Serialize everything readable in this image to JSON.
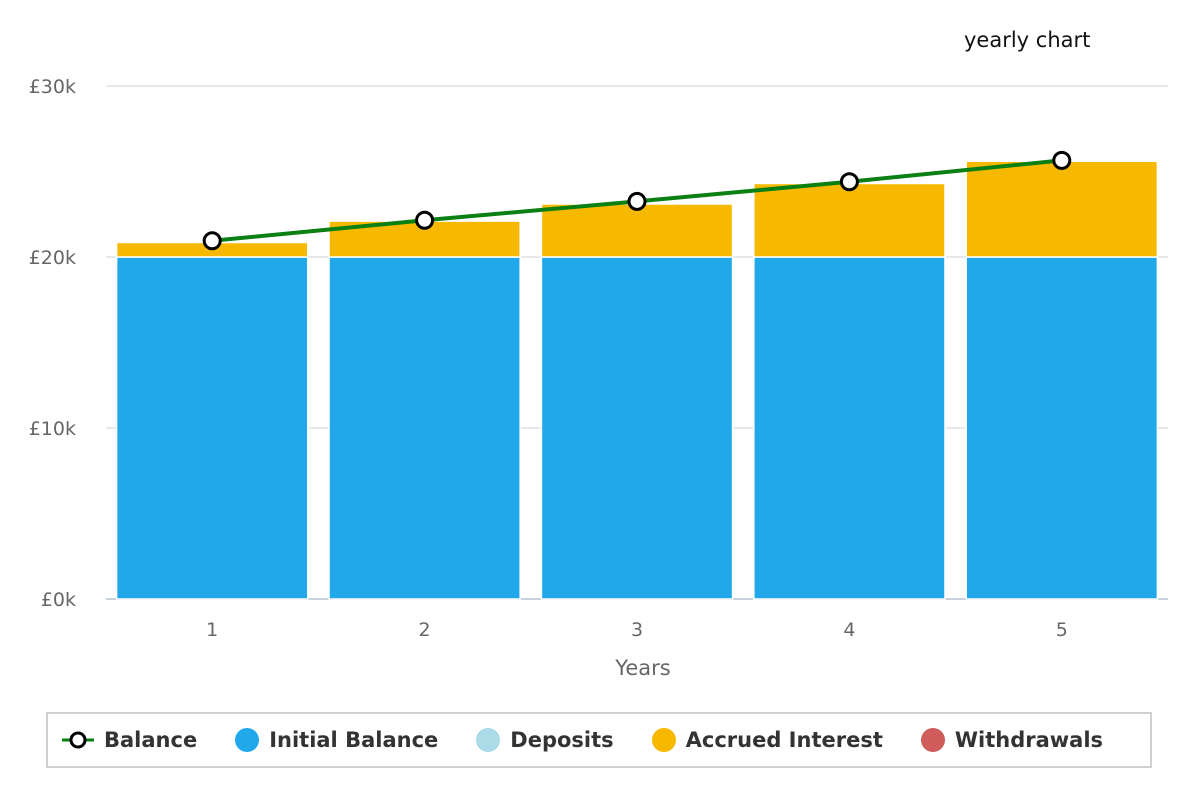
{
  "title": "yearly chart",
  "colors": {
    "balance_line": "#0a7f12",
    "initial_balance": "#21a8eb",
    "deposits": "#acdbe8",
    "accrued_interest": "#f7b900",
    "withdrawals": "#d05c5c",
    "grid": "#e0e0e0"
  },
  "legend": [
    {
      "key": "balance",
      "label": "Balance"
    },
    {
      "key": "initial_balance",
      "label": "Initial Balance"
    },
    {
      "key": "deposits",
      "label": "Deposits"
    },
    {
      "key": "accrued_interest",
      "label": "Accrued Interest"
    },
    {
      "key": "withdrawals",
      "label": "Withdrawals"
    }
  ],
  "chart_data": {
    "type": "bar",
    "stacked": true,
    "title": "yearly chart",
    "xlabel": "Years",
    "ylabel": "",
    "categories": [
      "1",
      "2",
      "3",
      "4",
      "5"
    ],
    "ylim": [
      0,
      30000
    ],
    "yticks": [
      0,
      10000,
      20000,
      30000
    ],
    "ytick_labels": [
      "£0k",
      "£10k",
      "£20k",
      "£30k"
    ],
    "grid": true,
    "legend_position": "bottom",
    "series": [
      {
        "name": "Initial Balance",
        "type": "bar",
        "values": [
          20000,
          20000,
          20000,
          20000,
          20000
        ]
      },
      {
        "name": "Deposits",
        "type": "bar",
        "values": [
          0,
          0,
          0,
          0,
          0
        ]
      },
      {
        "name": "Accrued Interest",
        "type": "bar",
        "values": [
          850,
          2100,
          3100,
          4300,
          5600
        ]
      },
      {
        "name": "Withdrawals",
        "type": "bar",
        "values": [
          0,
          0,
          0,
          0,
          0
        ]
      },
      {
        "name": "Balance",
        "type": "line",
        "values": [
          20950,
          22150,
          23250,
          24400,
          25650
        ]
      }
    ]
  }
}
